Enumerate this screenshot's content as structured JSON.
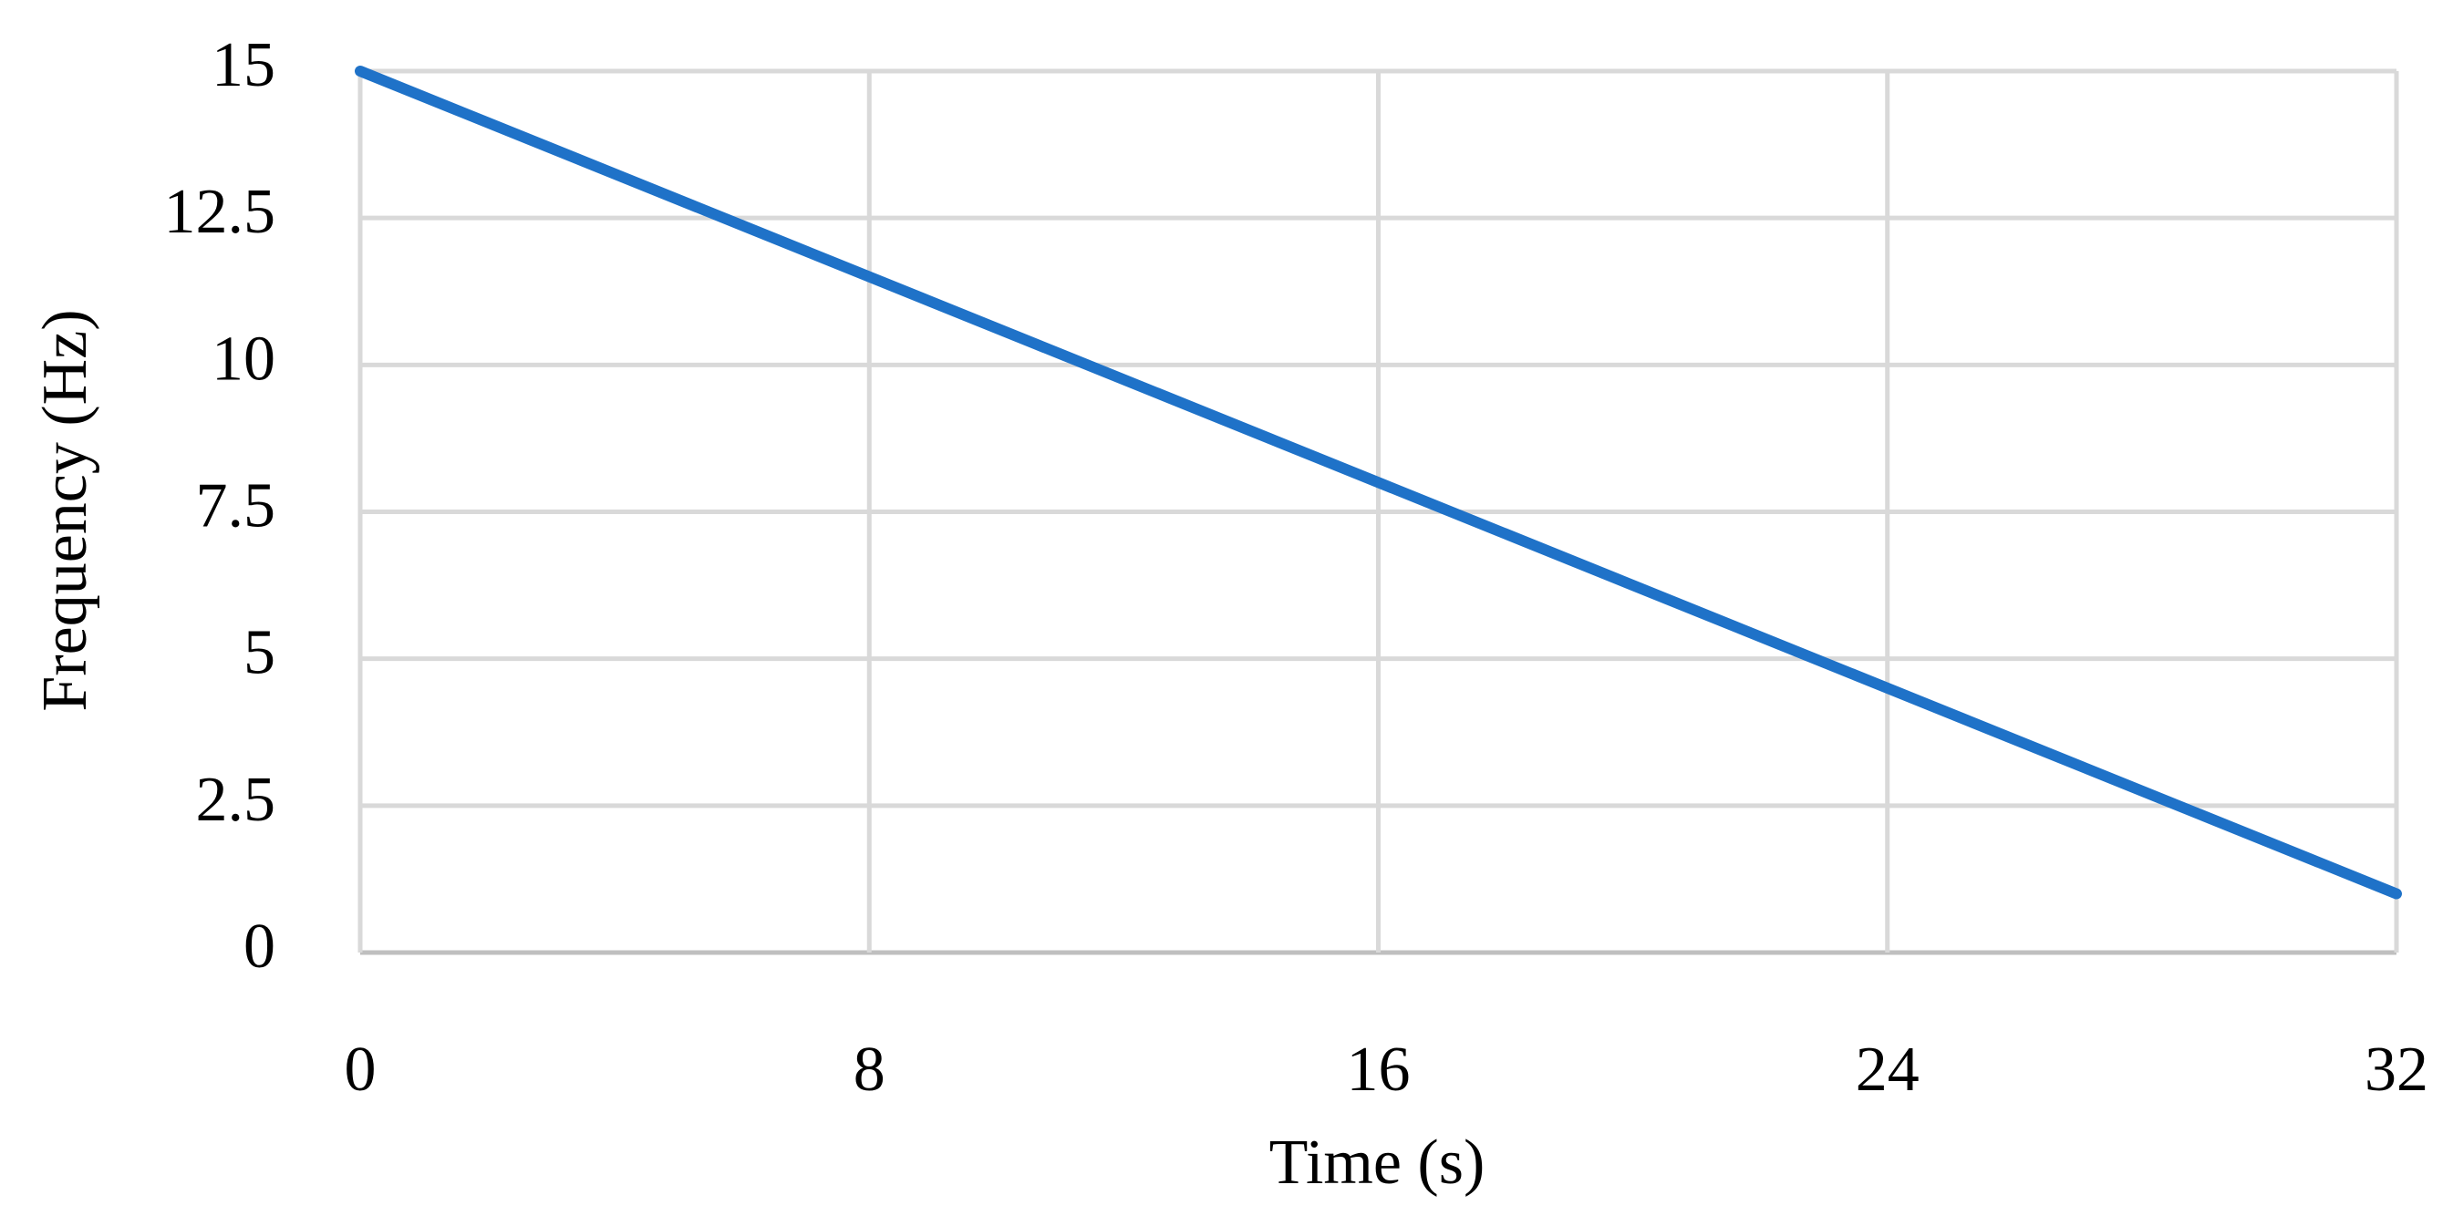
{
  "chart_data": {
    "type": "line",
    "x_label": "Time (s)",
    "y_label": "Frequency (Hz)",
    "series": [
      {
        "name": "Frequency",
        "color": "#1f72c8",
        "x": [
          0,
          32
        ],
        "values": [
          15,
          1
        ]
      }
    ],
    "xlim": [
      0,
      32
    ],
    "xticks": [
      0,
      8,
      16,
      24,
      32
    ],
    "ylim": [
      0,
      15
    ],
    "yticks": [
      0,
      2.5,
      5,
      7.5,
      10,
      12.5,
      15
    ],
    "grid": true
  }
}
